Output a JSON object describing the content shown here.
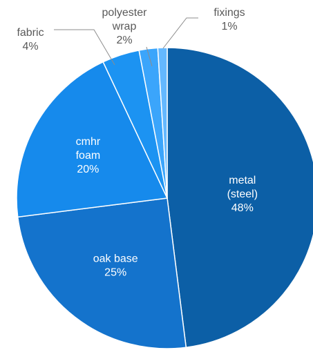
{
  "chart_data": {
    "type": "pie",
    "title": "",
    "start_angle_deg": 0,
    "direction": "clockwise",
    "legend": "none",
    "slices": [
      {
        "label": [
          "metal",
          "(steel)"
        ],
        "value": 48,
        "value_label": "48%",
        "color": "#0C5FA6",
        "label_position": "inside"
      },
      {
        "label": [
          "oak base"
        ],
        "value": 25,
        "value_label": "25%",
        "color": "#1473CC",
        "label_position": "inside"
      },
      {
        "label": [
          "cmhr",
          "foam"
        ],
        "value": 20,
        "value_label": "20%",
        "color": "#168AEC",
        "label_position": "inside"
      },
      {
        "label": [
          "fabric"
        ],
        "value": 4,
        "value_label": "4%",
        "color": "#1C93F2",
        "label_position": "outside"
      },
      {
        "label": [
          "polyester",
          "wrap"
        ],
        "value": 2,
        "value_label": "2%",
        "color": "#3BA5FB",
        "label_position": "outside"
      },
      {
        "label": [
          "fixings"
        ],
        "value": 1,
        "value_label": "1%",
        "color": "#64B8FF",
        "label_position": "outside"
      }
    ]
  }
}
